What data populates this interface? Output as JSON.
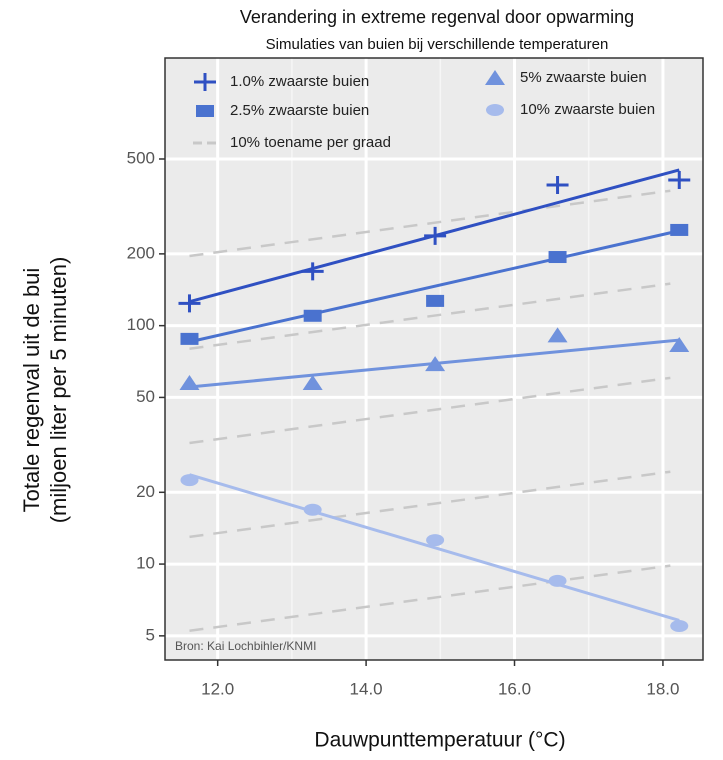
{
  "chart_data": {
    "type": "scatter",
    "title": "Verandering in extreme regenval door opwarming",
    "subtitle": "Simulaties van buien bij verschillende temperaturen",
    "x_label": "Dauwpunttemperatuur (°C)",
    "y_label": [
      "Totale regenval uit de bui",
      "(miljoen liter per 5 minuten)"
    ],
    "annotation": "Bron: Kai Lochbihler/KNMI",
    "log_y": true,
    "grid": true,
    "xlim": [
      11.29,
      18.54
    ],
    "ylim": [
      3.96,
      1326
    ],
    "xticks": [
      {
        "value": 12,
        "label": "12.0"
      },
      {
        "value": 14,
        "label": "14.0"
      },
      {
        "value": 16,
        "label": "16.0"
      },
      {
        "value": 18,
        "label": "18.0"
      }
    ],
    "x_minor_grid": [
      13,
      15,
      17
    ],
    "yticks": [
      5,
      10,
      20,
      50,
      100,
      200,
      500
    ],
    "series": [
      {
        "name": "1.0% zwaarste buien",
        "color": "#2f50c2",
        "marker": "plus",
        "x": [
          11.62,
          13.28,
          14.93,
          16.58,
          18.22
        ],
        "values": [
          124,
          169,
          238,
          389,
          408
        ],
        "trend": {
          "x": [
            11.62,
            18.22
          ],
          "values": [
            126,
            450
          ]
        }
      },
      {
        "name": "2.5% zwaarste buien",
        "color": "#4a72cf",
        "marker": "square",
        "x": [
          11.62,
          13.28,
          14.93,
          16.58,
          18.22
        ],
        "values": [
          88,
          110,
          127,
          194,
          252
        ],
        "trend": {
          "x": [
            11.62,
            18.22
          ],
          "values": [
            85.5,
            250
          ]
        }
      },
      {
        "name": "5% zwaarste buien",
        "color": "#7092dd",
        "marker": "triangle",
        "x": [
          11.62,
          13.28,
          14.93,
          16.58,
          18.22
        ],
        "values": [
          57.5,
          57.5,
          69,
          91,
          83
        ],
        "trend": {
          "x": [
            11.62,
            18.22
          ],
          "values": [
            55.3,
            87
          ]
        }
      },
      {
        "name": "10% zwaarste buien",
        "color": "#a6bbec",
        "marker": "ellipse",
        "x": [
          11.62,
          13.28,
          14.93,
          16.58,
          18.22
        ],
        "values": [
          22.5,
          16.9,
          12.6,
          8.5,
          5.5
        ],
        "trend": {
          "x": [
            11.62,
            18.22
          ],
          "values": [
            23.7,
            5.8
          ]
        }
      }
    ],
    "reference": {
      "name": "10% toename per graad",
      "color": "#c8c8c8",
      "lines": [
        {
          "x": [
            11.62,
            18.1
          ],
          "values": [
            196,
            368
          ]
        },
        {
          "x": [
            11.62,
            18.1
          ],
          "values": [
            80,
            150
          ]
        },
        {
          "x": [
            11.62,
            18.1
          ],
          "values": [
            32.2,
            60.4
          ]
        },
        {
          "x": [
            11.62,
            18.1
          ],
          "values": [
            13,
            24.4
          ]
        },
        {
          "x": [
            11.62,
            18.1
          ],
          "values": [
            5.25,
            9.85
          ]
        }
      ]
    }
  }
}
